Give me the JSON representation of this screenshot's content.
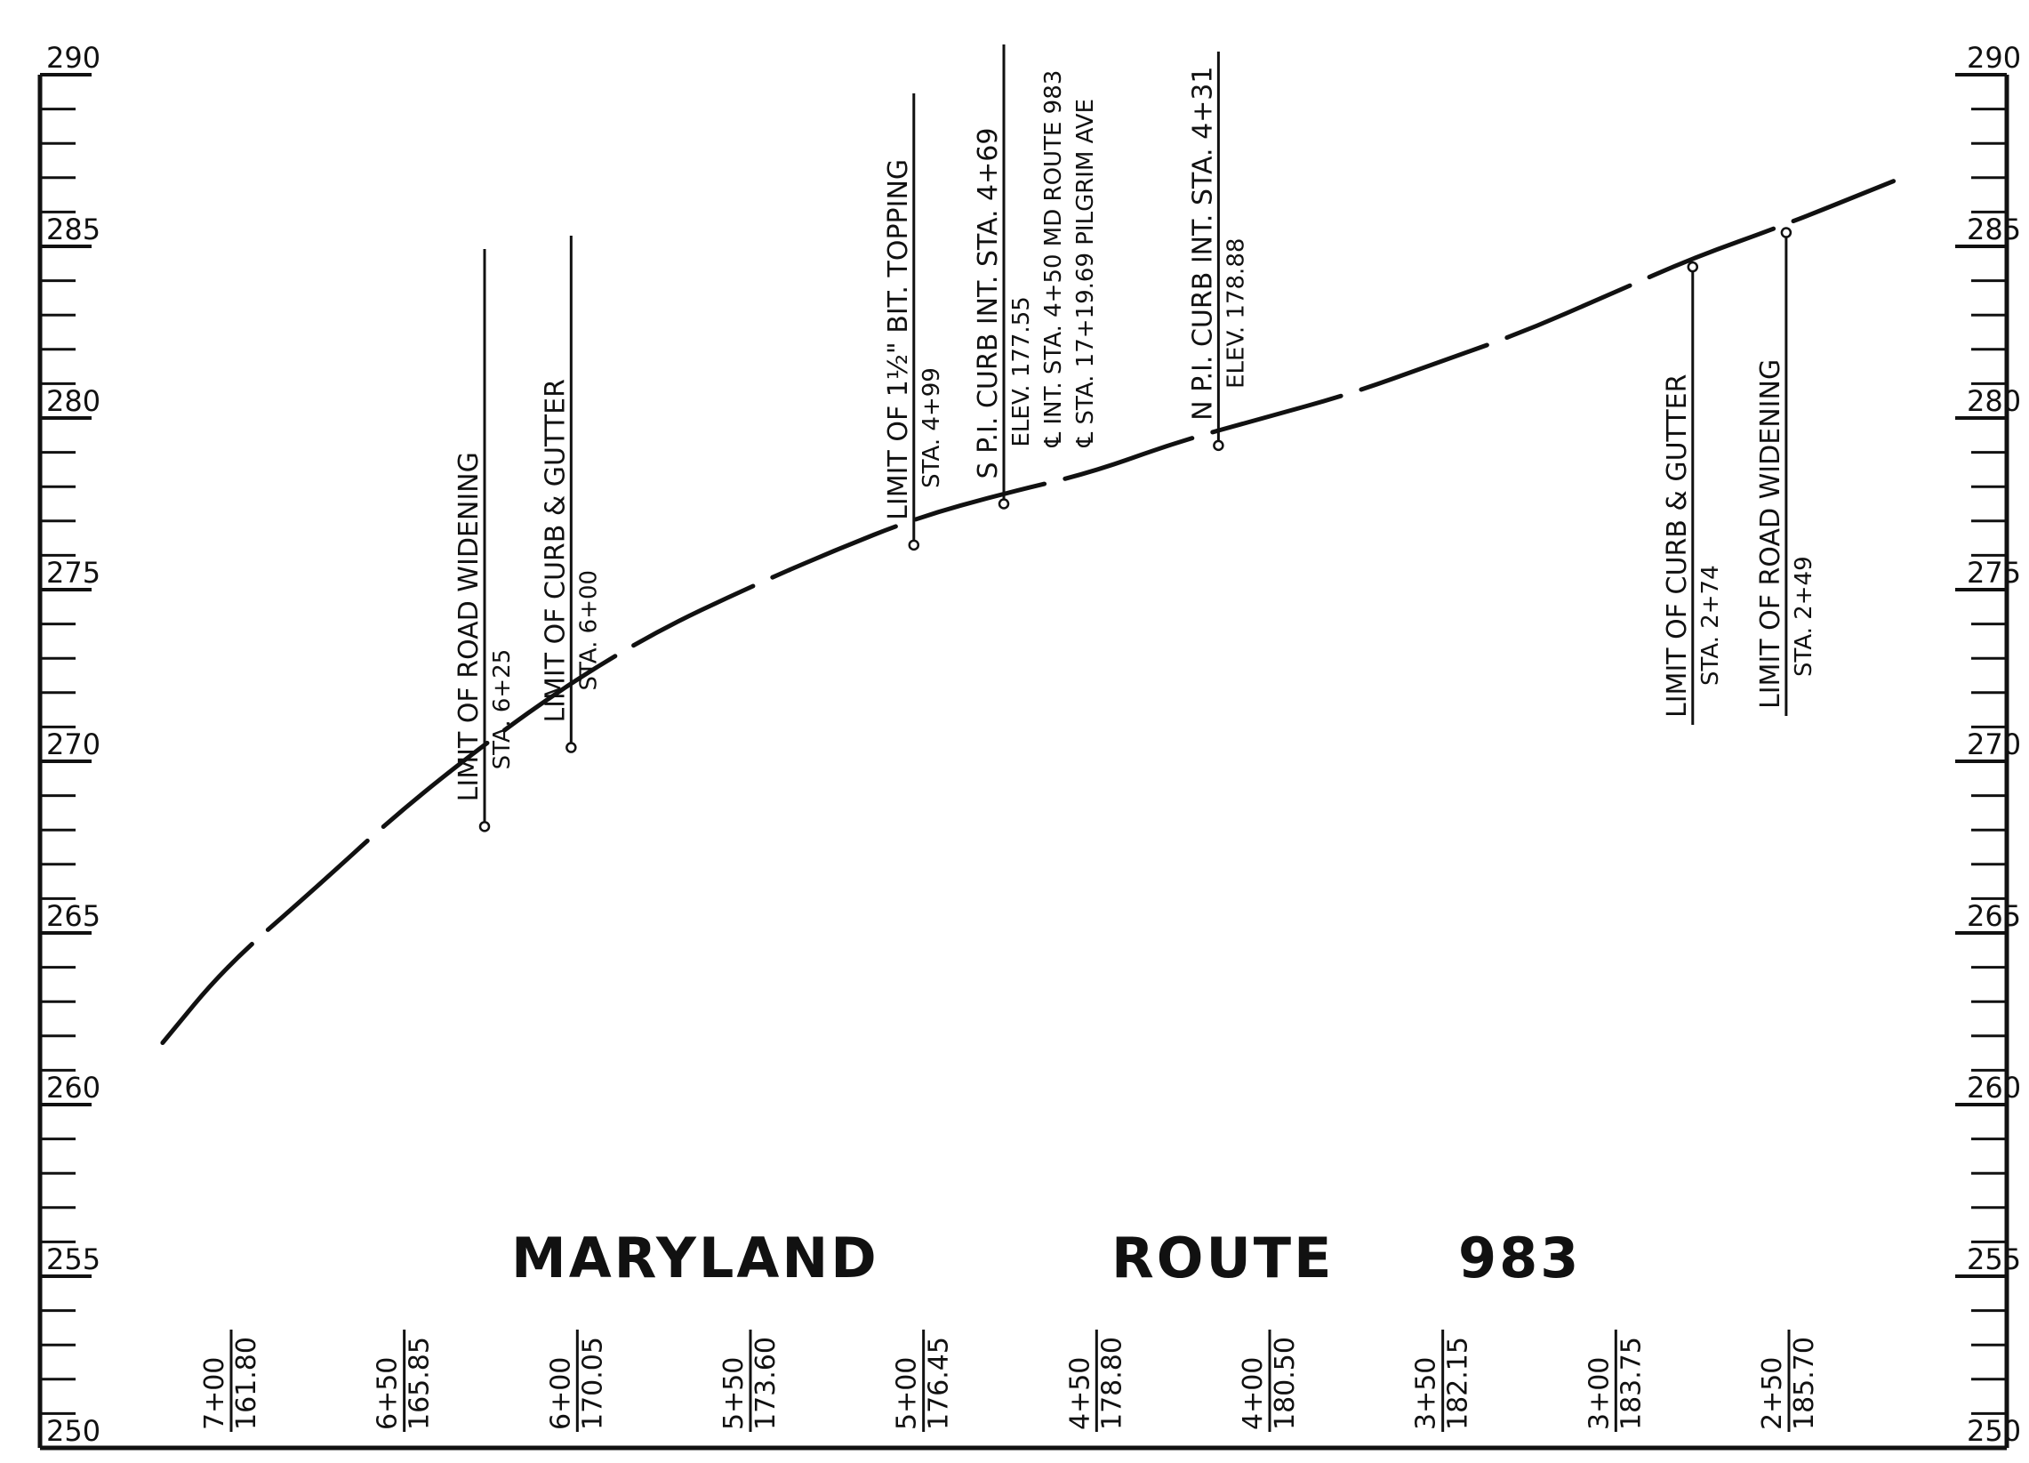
{
  "title": {
    "words": [
      "MARYLAND",
      "ROUTE",
      "983"
    ]
  },
  "chart_data": {
    "type": "line",
    "title": "MARYLAND ROUTE 983",
    "ylim": [
      250,
      290
    ],
    "y_major_ticks": [
      "290",
      "285",
      "280",
      "275",
      "270",
      "265",
      "260",
      "255",
      "250"
    ],
    "stations": [
      {
        "sta": "7+00",
        "elev": "161.80"
      },
      {
        "sta": "6+50",
        "elev": "165.85"
      },
      {
        "sta": "6+00",
        "elev": "170.05"
      },
      {
        "sta": "5+50",
        "elev": "173.60"
      },
      {
        "sta": "5+00",
        "elev": "176.45"
      },
      {
        "sta": "4+50",
        "elev": "178.80"
      },
      {
        "sta": "4+00",
        "elev": "180.50"
      },
      {
        "sta": "3+50",
        "elev": "182.15"
      },
      {
        "sta": "3+00",
        "elev": "183.75"
      },
      {
        "sta": "2+50",
        "elev": "185.70"
      }
    ],
    "profile": {
      "x": [
        7.18,
        7.0,
        6.75,
        6.5,
        6.25,
        6.0,
        5.75,
        5.5,
        5.25,
        5.0,
        4.75,
        4.5,
        4.25,
        4.0,
        3.75,
        3.5,
        3.25,
        3.0,
        2.75,
        2.5,
        2.18
      ],
      "y": [
        261.8,
        264.0,
        266.2,
        268.5,
        270.5,
        272.3,
        273.8,
        275.0,
        276.1,
        277.1,
        277.8,
        278.4,
        279.3,
        280.0,
        280.7,
        281.6,
        282.5,
        283.6,
        284.7,
        285.6,
        286.9
      ]
    },
    "callouts": [
      {
        "x": 6.25,
        "y": 268.1,
        "lines": [
          "LIMIT OF ROAD WIDENING",
          "STA. 6+25"
        ]
      },
      {
        "x": 6.0,
        "y": 270.4,
        "lines": [
          "LIMIT OF CURB & GUTTER",
          "STA. 6+00"
        ]
      },
      {
        "x": 5.01,
        "y": 276.3,
        "lines": [
          "LIMIT OF 1½\" BIT. TOPPING",
          "STA. 4+99"
        ]
      },
      {
        "x": 4.75,
        "y": 277.5,
        "lines": [
          "S P.I. CURB INT. STA. 4+69",
          "ELEV. 177.55",
          "℄ INT. STA. 4+50 MD ROUTE 983",
          "℄ STA. 17+19.69 PILGRIM AVE"
        ]
      },
      {
        "x": 4.13,
        "y": 279.2,
        "lines": [
          "N P.I. CURB INT. STA. 4+31",
          "ELEV. 178.88"
        ]
      },
      {
        "x": 2.76,
        "y": 284.4,
        "lines": [
          "LIMIT OF CURB & GUTTER",
          "STA. 2+74"
        ]
      },
      {
        "x": 2.49,
        "y": 285.4,
        "lines": [
          "LIMIT OF ROAD WIDENING",
          "STA. 2+49"
        ]
      }
    ]
  }
}
